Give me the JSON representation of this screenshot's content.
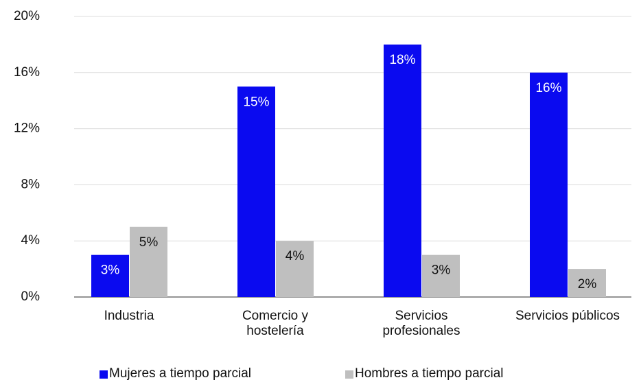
{
  "chart_data": {
    "type": "bar",
    "categories": [
      [
        "Industria"
      ],
      [
        "Comercio y",
        "hostelería"
      ],
      [
        "Servicios",
        "profesionales"
      ],
      [
        "Servicios públicos"
      ]
    ],
    "series": [
      {
        "name": "Mujeres a tiempo parcial",
        "color": "#0a0af0",
        "values": [
          3,
          15,
          18,
          16
        ],
        "value_labels": [
          "3%",
          "15%",
          "18%",
          "16%"
        ],
        "label_color": "#ffffff"
      },
      {
        "name": "Hombres a tiempo parcial",
        "color": "#bfbfbf",
        "values": [
          5,
          4,
          3,
          2
        ],
        "value_labels": [
          "5%",
          "4%",
          "3%",
          "2%"
        ],
        "label_color": "#111111"
      }
    ],
    "ylim": [
      0,
      20
    ],
    "yticks": [
      {
        "value": 0,
        "label": "0%"
      },
      {
        "value": 4,
        "label": "4%"
      },
      {
        "value": 8,
        "label": "8%"
      },
      {
        "value": 12,
        "label": "12%"
      },
      {
        "value": 16,
        "label": "16%"
      },
      {
        "value": 20,
        "label": "20%"
      }
    ],
    "grid": true,
    "legend": "bottom"
  }
}
